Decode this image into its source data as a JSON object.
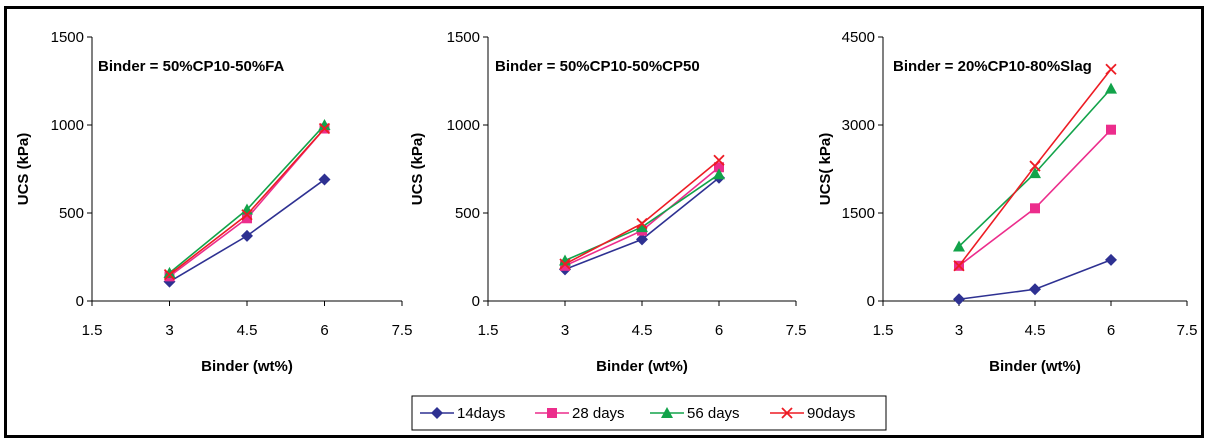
{
  "colors": {
    "14days": "#2e3192",
    "28 days": "#ec2d8c",
    "56 days": "#12a34a",
    "90days": "#ed1c24"
  },
  "legend": [
    "14days",
    "28 days",
    "56 days",
    "90days"
  ],
  "chart_data": [
    {
      "type": "line",
      "title": "Binder = 50%CP10-50%FA",
      "xlabel": "Binder (wt%)",
      "ylabel": "UCS (kPa)",
      "xlim": [
        1.5,
        7.5
      ],
      "ylim": [
        0,
        1500
      ],
      "xticks": [
        1.5,
        3,
        4.5,
        6,
        7.5
      ],
      "yticks": [
        0,
        500,
        1000,
        1500
      ],
      "x": [
        3,
        4.5,
        6
      ],
      "series": [
        {
          "name": "14days",
          "values": [
            110,
            370,
            690
          ],
          "marker": "diamond"
        },
        {
          "name": "28 days",
          "values": [
            140,
            470,
            980
          ],
          "marker": "square"
        },
        {
          "name": "56 days",
          "values": [
            160,
            520,
            1000
          ],
          "marker": "triangle"
        },
        {
          "name": "90days",
          "values": [
            150,
            490,
            980
          ],
          "marker": "x"
        }
      ]
    },
    {
      "type": "line",
      "title": "Binder = 50%CP10-50%CP50",
      "xlabel": "Binder (wt%)",
      "ylabel": "UCS (kPa)",
      "xlim": [
        1.5,
        7.5
      ],
      "ylim": [
        0,
        1500
      ],
      "xticks": [
        1.5,
        3,
        4.5,
        6,
        7.5
      ],
      "yticks": [
        0,
        500,
        1000,
        1500
      ],
      "x": [
        3,
        4.5,
        6
      ],
      "series": [
        {
          "name": "14days",
          "values": [
            180,
            350,
            700
          ],
          "marker": "diamond"
        },
        {
          "name": "28 days",
          "values": [
            200,
            400,
            760
          ],
          "marker": "square"
        },
        {
          "name": "56 days",
          "values": [
            230,
            420,
            720
          ],
          "marker": "triangle"
        },
        {
          "name": "90days",
          "values": [
            210,
            440,
            800
          ],
          "marker": "x"
        }
      ]
    },
    {
      "type": "line",
      "title": "Binder = 20%CP10-80%Slag",
      "xlabel": "Binder (wt%)",
      "ylabel": "UCS( kPa)",
      "xlim": [
        1.5,
        7.5
      ],
      "ylim": [
        0,
        4500
      ],
      "xticks": [
        1.5,
        3,
        4.5,
        6,
        7.5
      ],
      "yticks": [
        0,
        1500,
        3000,
        4500
      ],
      "x": [
        3,
        4.5,
        6
      ],
      "series": [
        {
          "name": "14days",
          "values": [
            30,
            200,
            700
          ],
          "marker": "diamond"
        },
        {
          "name": "28 days",
          "values": [
            600,
            1580,
            2920
          ],
          "marker": "square"
        },
        {
          "name": "56 days",
          "values": [
            930,
            2180,
            3620
          ],
          "marker": "triangle"
        },
        {
          "name": "90days",
          "values": [
            600,
            2300,
            3950
          ],
          "marker": "x"
        }
      ]
    }
  ]
}
